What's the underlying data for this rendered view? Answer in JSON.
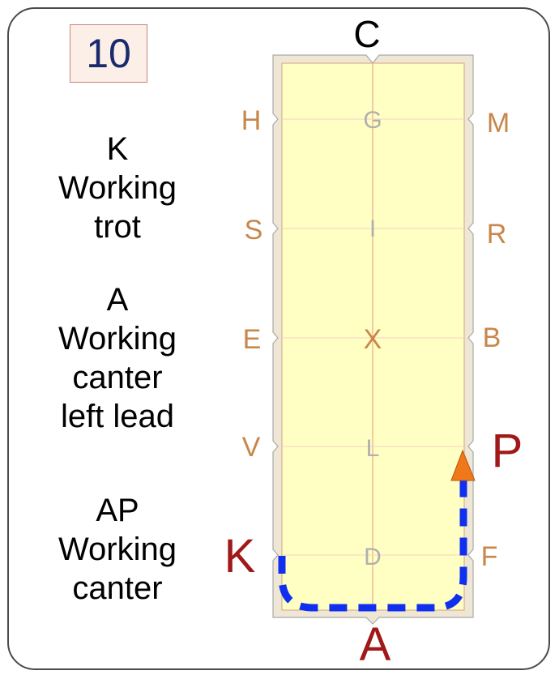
{
  "test_number": "10",
  "instructions": [
    {
      "lines": [
        "K",
        "Working",
        "trot"
      ]
    },
    {
      "lines": [
        "A",
        "Working",
        "canter",
        "left lead"
      ]
    },
    {
      "lines": [
        "AP",
        "Working",
        "canter"
      ]
    }
  ],
  "arena": {
    "top_letter": "C",
    "bottom_letter": "A",
    "left_letters": [
      "H",
      "S",
      "E",
      "V",
      "K"
    ],
    "right_letters": [
      "M",
      "R",
      "B",
      "P",
      "F"
    ],
    "center_letters": [
      "G",
      "I",
      "X",
      "L",
      "D"
    ],
    "start_letter": "K",
    "end_letter": "P"
  },
  "colors": {
    "arena_fill": "#ffffc4",
    "arena_border": "#efe7d6",
    "letter_color": "#c8874a",
    "center_letter_color": "#b0b0b0",
    "highlight_letter_color": "#a01818",
    "path_color": "#1030ee",
    "arrow_color": "#f07818"
  }
}
